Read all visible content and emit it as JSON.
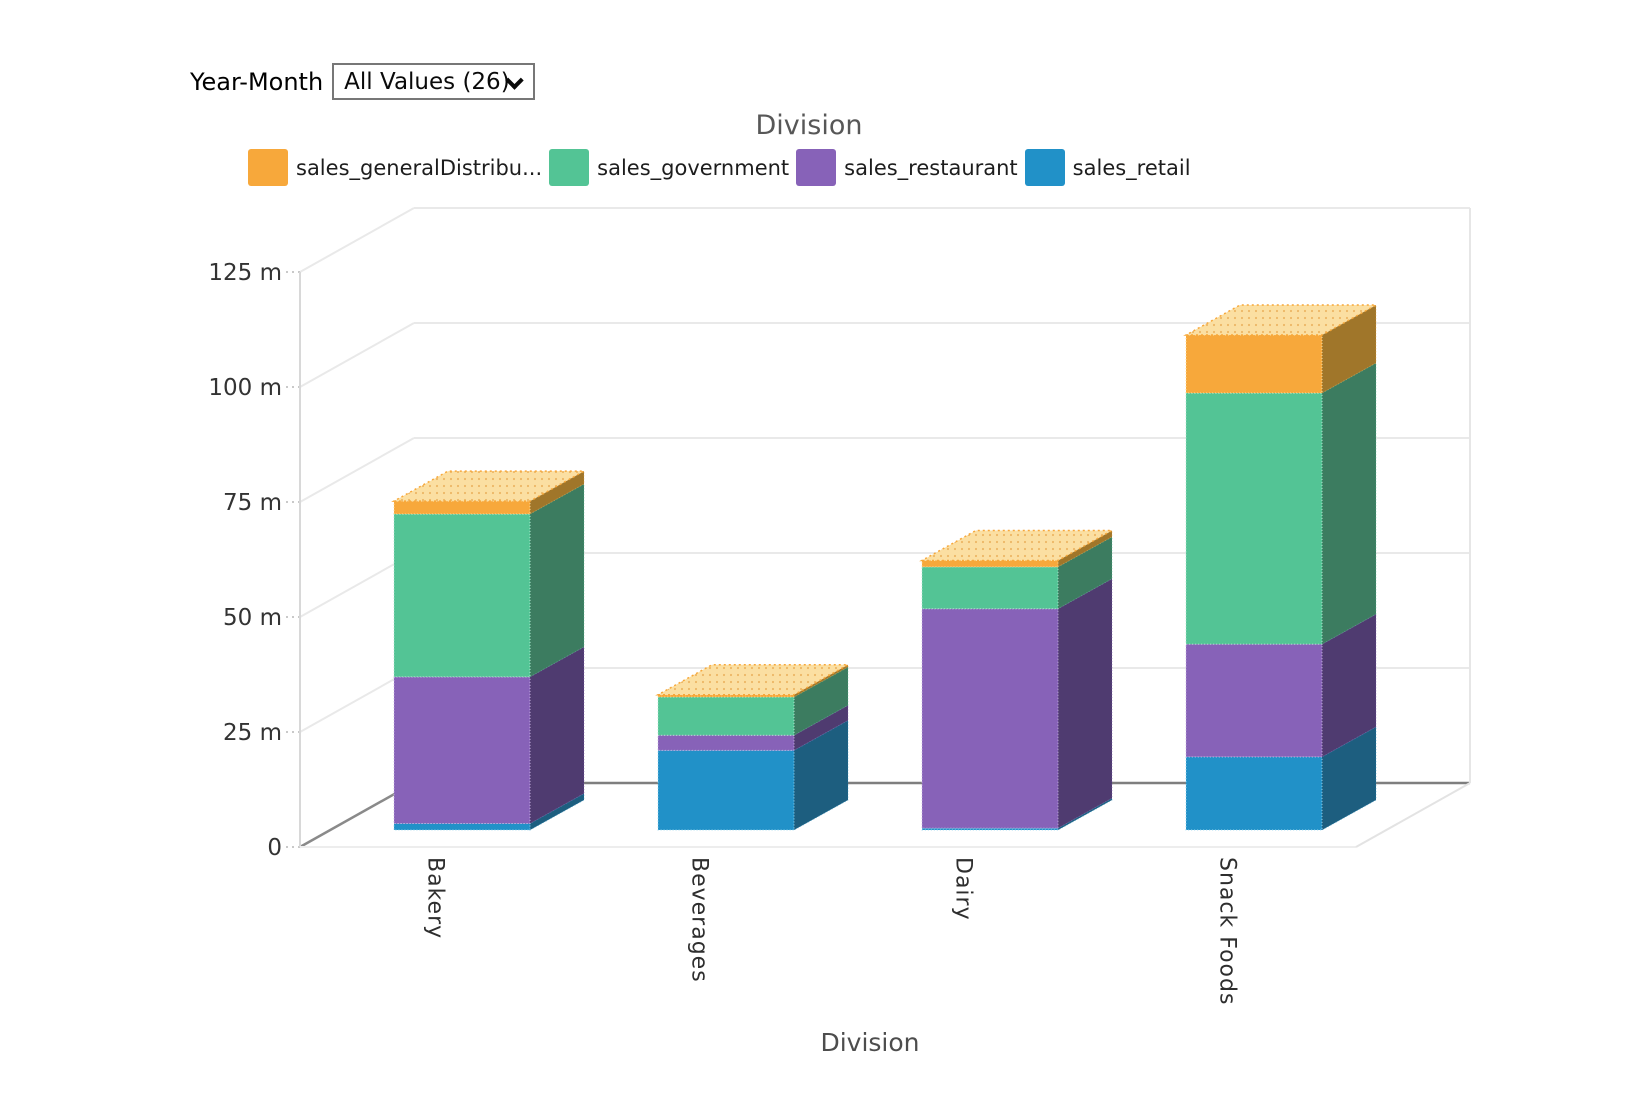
{
  "filter": {
    "label": "Year-Month",
    "value": "All Values (26)"
  },
  "chart_data": {
    "type": "bar",
    "subtype": "3d-stacked-column",
    "title": "Division",
    "xlabel": "Division",
    "ylabel": "",
    "ylim": [
      0,
      125
    ],
    "grid": true,
    "legend_position": "top",
    "y_ticks": [
      "0",
      "25 m",
      "50 m",
      "75 m",
      "100 m",
      "125 m"
    ],
    "categories": [
      "Bakery",
      "Beverages",
      "Dairy",
      "Snack Foods"
    ],
    "series": [
      {
        "name": "sales_retail",
        "color": "#2191C8",
        "dark": "#1D5E7F",
        "light": "#9ED8EE",
        "values": [
          1.4,
          17.3,
          0.4,
          15.9
        ]
      },
      {
        "name": "sales_restaurant",
        "color": "#8762B8",
        "dark": "#4F3B70",
        "light": "#CBB6E3",
        "values": [
          31.9,
          3.3,
          47.7,
          24.5
        ]
      },
      {
        "name": "sales_government",
        "color": "#53C495",
        "dark": "#3C7C60",
        "light": "#B2E6CF",
        "values": [
          35.4,
          8.3,
          9.1,
          54.6
        ]
      },
      {
        "name": "sales_generalDistribu...",
        "color": "#F7A83B",
        "dark": "#A0762A",
        "light": "#FBDFA2",
        "values": [
          2.8,
          0.5,
          1.4,
          12.6
        ]
      }
    ],
    "legend_items": [
      {
        "label": "sales_generalDistribu...",
        "color": "#F7A83B"
      },
      {
        "label": "sales_government",
        "color": "#53C495"
      },
      {
        "label": "sales_restaurant",
        "color": "#8762B8"
      },
      {
        "label": "sales_retail",
        "color": "#2191C8"
      }
    ]
  }
}
